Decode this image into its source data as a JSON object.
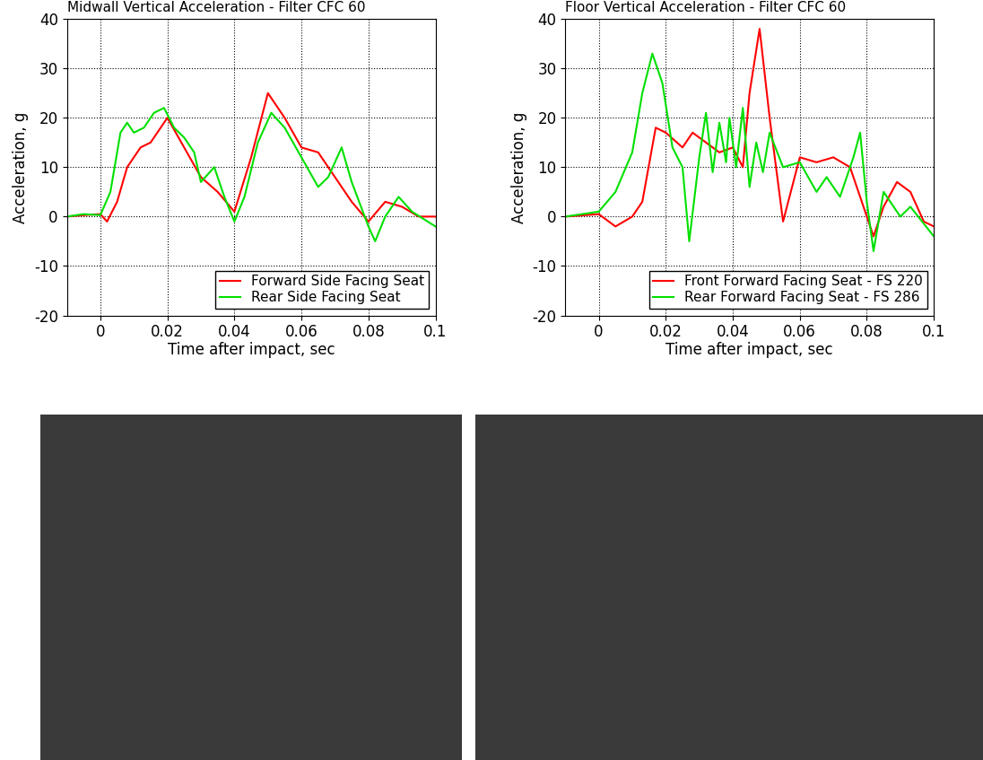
{
  "chart_data": [
    {
      "type": "line",
      "title": "Midwall Vertical Acceleration - Filter CFC 60",
      "x_label": "Time after impact, sec",
      "y_label": "Acceleration, g",
      "xlim": [
        -0.01,
        0.1
      ],
      "ylim": [
        -20,
        40
      ],
      "xticks": [
        0,
        0.02,
        0.04,
        0.06,
        0.08,
        0.1
      ],
      "yticks": [
        -20,
        -10,
        0,
        10,
        20,
        30,
        40
      ],
      "grid": true,
      "legend": "lower right",
      "series": [
        {
          "name": "Forward Side Facing Seat",
          "color": "#ff0000",
          "x": [
            -0.01,
            -0.005,
            0,
            0.002,
            0.005,
            0.008,
            0.012,
            0.015,
            0.02,
            0.025,
            0.03,
            0.035,
            0.04,
            0.045,
            0.05,
            0.055,
            0.06,
            0.065,
            0.07,
            0.075,
            0.08,
            0.085,
            0.09,
            0.095,
            0.1
          ],
          "values": [
            0,
            0.3,
            0.5,
            -1,
            3,
            10,
            14,
            15,
            20,
            14,
            8,
            5,
            1,
            12,
            25,
            20,
            14,
            13,
            8,
            3,
            -1,
            3,
            2,
            0,
            0
          ]
        },
        {
          "name": "Rear Side Facing Seat",
          "color": "#00e000",
          "x": [
            -0.01,
            -0.005,
            0,
            0.003,
            0.006,
            0.008,
            0.01,
            0.013,
            0.016,
            0.019,
            0.022,
            0.025,
            0.028,
            0.03,
            0.034,
            0.037,
            0.04,
            0.043,
            0.047,
            0.051,
            0.055,
            0.06,
            0.065,
            0.068,
            0.072,
            0.075,
            0.08,
            0.082,
            0.085,
            0.089,
            0.093,
            0.1
          ],
          "values": [
            0,
            0.5,
            0.3,
            5,
            17,
            19,
            17,
            18,
            21,
            22,
            18,
            16,
            13,
            7,
            10,
            4,
            -1,
            4,
            15,
            21,
            18,
            12,
            6,
            8,
            14,
            7,
            -2,
            -5,
            0,
            4,
            1,
            -2
          ]
        }
      ]
    },
    {
      "type": "line",
      "title": "Floor Vertical Acceleration - Filter CFC 60",
      "x_label": "Time after impact, sec",
      "y_label": "Acceleration, g",
      "xlim": [
        -0.01,
        0.1
      ],
      "ylim": [
        -20,
        40
      ],
      "xticks": [
        0,
        0.02,
        0.04,
        0.06,
        0.08,
        0.1
      ],
      "yticks": [
        -20,
        -10,
        0,
        10,
        20,
        30,
        40
      ],
      "grid": true,
      "legend": "lower right",
      "series": [
        {
          "name": "Front Forward Facing Seat - FS 220",
          "color": "#ff0000",
          "x": [
            -0.01,
            0,
            0.005,
            0.01,
            0.013,
            0.017,
            0.02,
            0.025,
            0.028,
            0.032,
            0.036,
            0.04,
            0.043,
            0.045,
            0.048,
            0.051,
            0.055,
            0.06,
            0.065,
            0.07,
            0.075,
            0.08,
            0.082,
            0.085,
            0.089,
            0.093,
            0.097,
            0.1
          ],
          "values": [
            0,
            0.5,
            -2,
            0,
            3,
            18,
            17,
            14,
            17,
            15,
            13,
            14,
            10,
            25,
            38,
            20,
            -1,
            12,
            11,
            12,
            10,
            0,
            -4,
            2,
            7,
            5,
            -1,
            -2
          ]
        },
        {
          "name": "Rear Forward Facing Seat - FS 286",
          "color": "#00e000",
          "x": [
            -0.01,
            0,
            0.005,
            0.01,
            0.013,
            0.016,
            0.019,
            0.022,
            0.025,
            0.027,
            0.03,
            0.032,
            0.034,
            0.036,
            0.038,
            0.039,
            0.041,
            0.043,
            0.045,
            0.047,
            0.049,
            0.051,
            0.055,
            0.06,
            0.065,
            0.068,
            0.072,
            0.076,
            0.078,
            0.08,
            0.082,
            0.085,
            0.09,
            0.093,
            0.1
          ],
          "values": [
            0,
            1,
            5,
            13,
            25,
            33,
            27,
            14,
            10,
            -5,
            12,
            21,
            9,
            19,
            11,
            20,
            10,
            22,
            6,
            15,
            9,
            17,
            10,
            11,
            5,
            8,
            4,
            12,
            17,
            3,
            -7,
            5,
            0,
            2,
            -4
          ]
        }
      ]
    }
  ]
}
